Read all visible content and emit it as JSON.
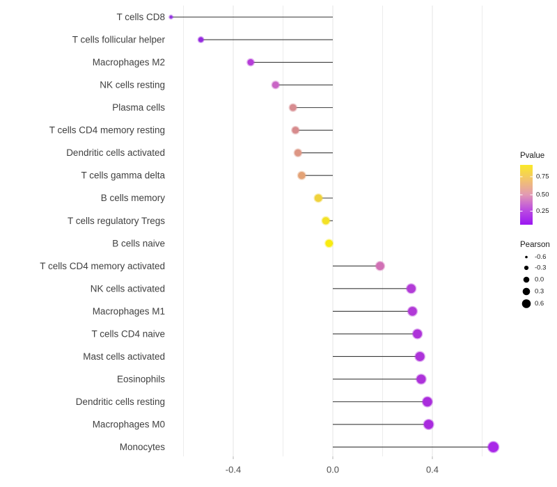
{
  "chart_data": {
    "type": "scatter",
    "variant": "lollipop",
    "title": "",
    "xlabel": "",
    "ylabel": "",
    "x_tick_labels": [
      "-0.4",
      "0.0",
      "0.4"
    ],
    "x_tick_values": [
      -0.4,
      0.0,
      0.4
    ],
    "xlim": [
      -0.72,
      0.73
    ],
    "grid_values": [
      -0.6,
      -0.4,
      -0.2,
      0.0,
      0.2,
      0.4,
      0.6
    ],
    "grid": "faint vertical gridlines every 0.2, white background",
    "legend_position": "right",
    "points": [
      {
        "label": "T cells CD8",
        "pearson": -0.65,
        "color": "#9333E2",
        "radius": 2.2
      },
      {
        "label": "T cells follicular helper",
        "pearson": -0.53,
        "color": "#9529DF",
        "radius": 3.6
      },
      {
        "label": "Macrophages M2",
        "pearson": -0.33,
        "color": "#B53CD8",
        "radius": 4.5
      },
      {
        "label": "NK cells resting",
        "pearson": -0.23,
        "color": "#C965C5",
        "radius": 4.9
      },
      {
        "label": "Plasma cells",
        "pearson": -0.16,
        "color": "#D78C90",
        "radius": 4.9
      },
      {
        "label": "T cells CD4 memory resting",
        "pearson": -0.15,
        "color": "#D78B8D",
        "radius": 4.9
      },
      {
        "label": "Dendritic cells activated",
        "pearson": -0.14,
        "color": "#DD9684",
        "radius": 5.0
      },
      {
        "label": "T cells gamma delta",
        "pearson": -0.125,
        "color": "#E3A276",
        "radius": 5.2
      },
      {
        "label": "B cells memory",
        "pearson": -0.058,
        "color": "#EFD23C",
        "radius": 5.4
      },
      {
        "label": "T cells regulatory  Tregs",
        "pearson": -0.028,
        "color": "#F3E125",
        "radius": 5.2
      },
      {
        "label": "B cells naive",
        "pearson": -0.015,
        "color": "#F9EC0F",
        "radius": 5.2
      },
      {
        "label": "T cells CD4 memory activated",
        "pearson": 0.19,
        "color": "#D170B5",
        "radius": 5.9
      },
      {
        "label": "NK cells activated",
        "pearson": 0.315,
        "color": "#B23CD7",
        "radius": 6.3
      },
      {
        "label": "Macrophages M1",
        "pearson": 0.32,
        "color": "#B13AD7",
        "radius": 6.3
      },
      {
        "label": "T cells CD4 naive",
        "pearson": 0.34,
        "color": "#AE34D9",
        "radius": 6.4
      },
      {
        "label": "Mast cells activated",
        "pearson": 0.35,
        "color": "#AD33DA",
        "radius": 6.5
      },
      {
        "label": "Eosinophils",
        "pearson": 0.355,
        "color": "#AD32DA",
        "radius": 6.5
      },
      {
        "label": "Dendritic cells resting",
        "pearson": 0.38,
        "color": "#AA2CDD",
        "radius": 6.7
      },
      {
        "label": "Macrophages M0",
        "pearson": 0.385,
        "color": "#A92BDE",
        "radius": 6.7
      },
      {
        "label": "Monocytes",
        "pearson": 0.645,
        "color": "#A928E8",
        "radius": 7.4
      }
    ],
    "legend": {
      "pvalue": {
        "title": "Pvalue",
        "tick_labels": [
          "0.75",
          "0.50",
          "0.25"
        ],
        "gradient_stops": [
          {
            "offset": 0.0,
            "color": "#FAE928"
          },
          {
            "offset": 0.25,
            "color": "#F2C36E"
          },
          {
            "offset": 0.5,
            "color": "#E299B4"
          },
          {
            "offset": 0.75,
            "color": "#BC4EE0"
          },
          {
            "offset": 1.0,
            "color": "#9B16F2"
          }
        ]
      },
      "pearson": {
        "title": "Pearson",
        "entries": [
          "-0.6",
          "-0.3",
          "0.0",
          "0.3",
          "0.6"
        ]
      }
    }
  }
}
